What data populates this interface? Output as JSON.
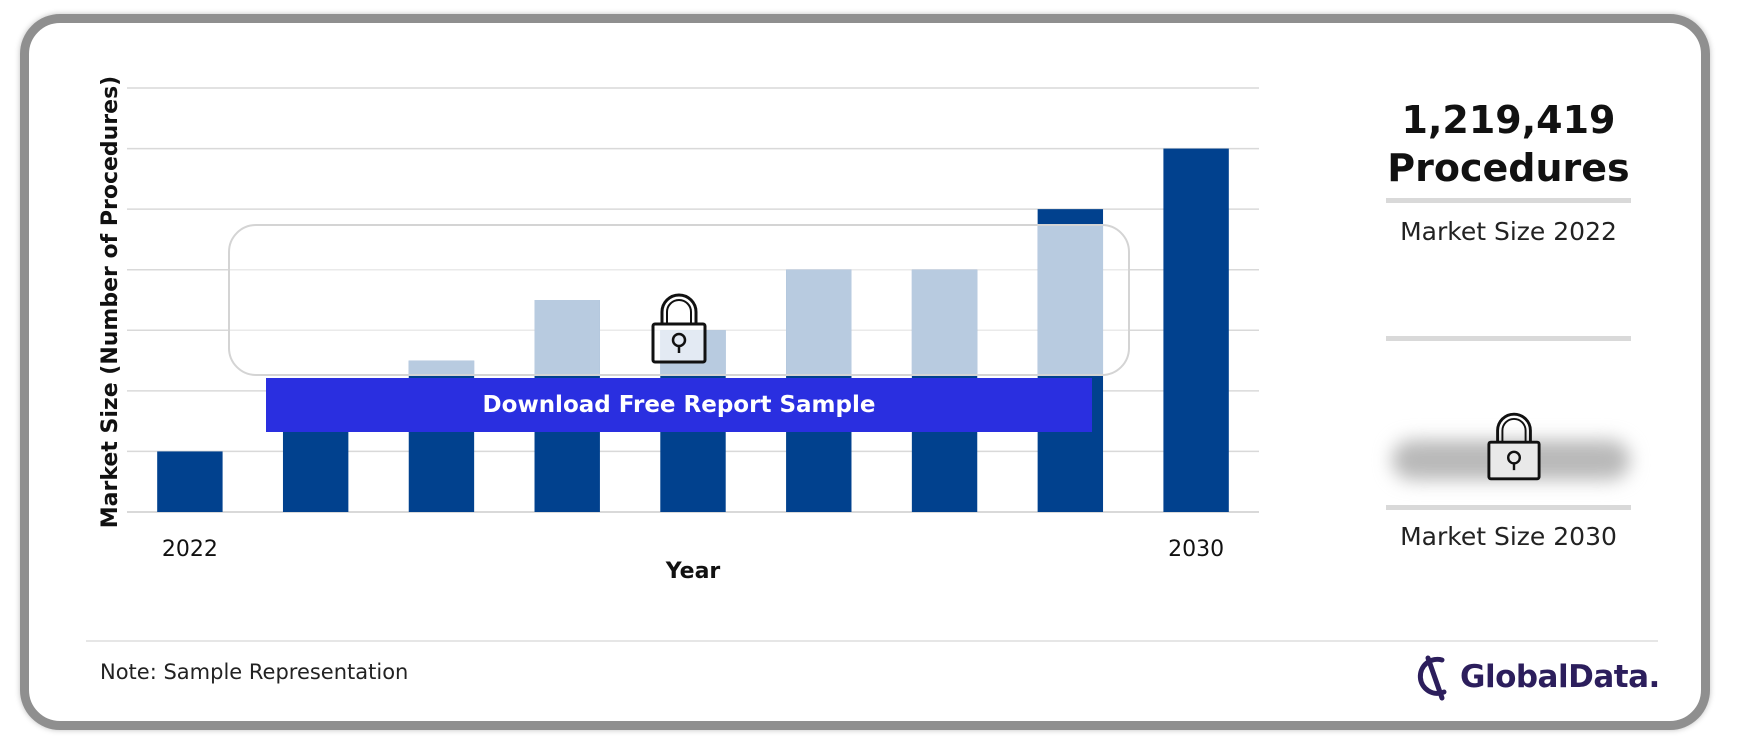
{
  "chart_data": {
    "type": "bar",
    "categories": [
      "2022",
      "",
      "",
      "",
      "",
      "",
      "",
      "",
      "2030"
    ],
    "values": [
      1,
      2,
      2.5,
      3.5,
      3,
      4,
      4,
      5,
      6
    ],
    "xlabel": "Year",
    "ylabel": "Market Size (Number of Procedures)",
    "ylim": [
      0,
      7
    ],
    "grid": true,
    "legend": "none",
    "colors": {
      "bar": "#01418e",
      "bar_faded": "#7fa0c7",
      "grid": "#d9d9d9"
    }
  },
  "kpi": {
    "value_2022": "1,219,419",
    "unit_2022": "Procedures",
    "label_2022": "Market Size 2022",
    "label_2030": "Market Size 2030"
  },
  "overlay": {
    "button_label": "Download Free Report Sample",
    "lock_icon": "lock-icon",
    "button_color": "#2a2fe0"
  },
  "footer": {
    "note": "Note: Sample Representation",
    "brand": "GlobalData."
  }
}
